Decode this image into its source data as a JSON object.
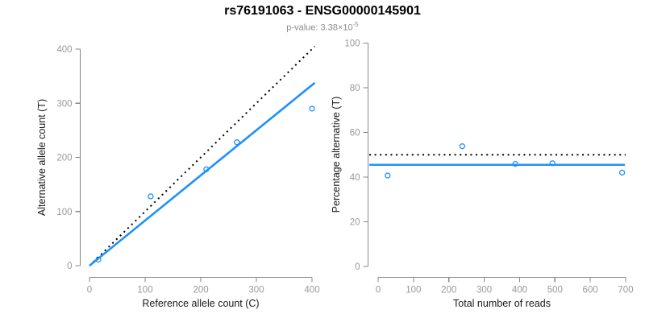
{
  "header": {
    "title": "rs76191063 - ENSG00000145901",
    "subtitle_prefix": "p-value: 3.38×10",
    "subtitle_exponent": "-5"
  },
  "colors": {
    "accent_blue": "#1E90FF",
    "line_black": "#000000",
    "tick_label_gray": "#999999",
    "axis_line_gray": "#878787",
    "axis_title_dark": "#1a1a1a",
    "subtitle_gray": "#8c8c8c",
    "background": "#ffffff"
  },
  "chart_data": [
    {
      "type": "scatter",
      "name": "allele-counts-scatter",
      "xlabel": "Reference allele count (C)",
      "ylabel": "Alternative allele count (T)",
      "xlim": [
        0,
        400
      ],
      "ylim": [
        0,
        400
      ],
      "xticks": [
        0,
        100,
        200,
        300,
        400
      ],
      "yticks": [
        0,
        100,
        200,
        300,
        400
      ],
      "grid": false,
      "legend": "none",
      "points": {
        "x": [
          16,
          110,
          210,
          265,
          400
        ],
        "y": [
          11,
          128,
          178,
          228,
          290
        ]
      },
      "lines": [
        {
          "name": "expected-identity-line",
          "slope": 1,
          "intercept": 0,
          "x_from": 0,
          "x_to": 405,
          "style": "dotted",
          "color": "line_black"
        },
        {
          "name": "observed-ratio-fit-line",
          "slope": 0.834,
          "intercept": 0,
          "x_from": 0,
          "x_to": 405,
          "style": "solid",
          "color": "accent_blue"
        }
      ]
    },
    {
      "type": "scatter",
      "name": "percentage-vs-coverage-scatter",
      "xlabel": "Total number of reads",
      "ylabel": "Percentage alternative (T)",
      "xlim": [
        0,
        700
      ],
      "ylim": [
        0,
        100
      ],
      "xticks": [
        0,
        100,
        200,
        300,
        400,
        500,
        600,
        700
      ],
      "yticks": [
        0,
        20,
        40,
        60,
        80,
        100
      ],
      "grid": false,
      "legend": "none",
      "points": {
        "x": [
          27,
          238,
          388,
          493,
          690
        ],
        "y": [
          40.7,
          53.8,
          45.9,
          46.2,
          42.0
        ]
      },
      "lines": [
        {
          "name": "expected-50pct-line",
          "slope": 0,
          "intercept": 50,
          "x_from": -25,
          "x_to": 700,
          "style": "dotted",
          "color": "line_black"
        },
        {
          "name": "overall-percentage-line",
          "slope": 0,
          "intercept": 45.5,
          "x_from": -25,
          "x_to": 698,
          "style": "solid",
          "color": "accent_blue"
        }
      ]
    }
  ]
}
